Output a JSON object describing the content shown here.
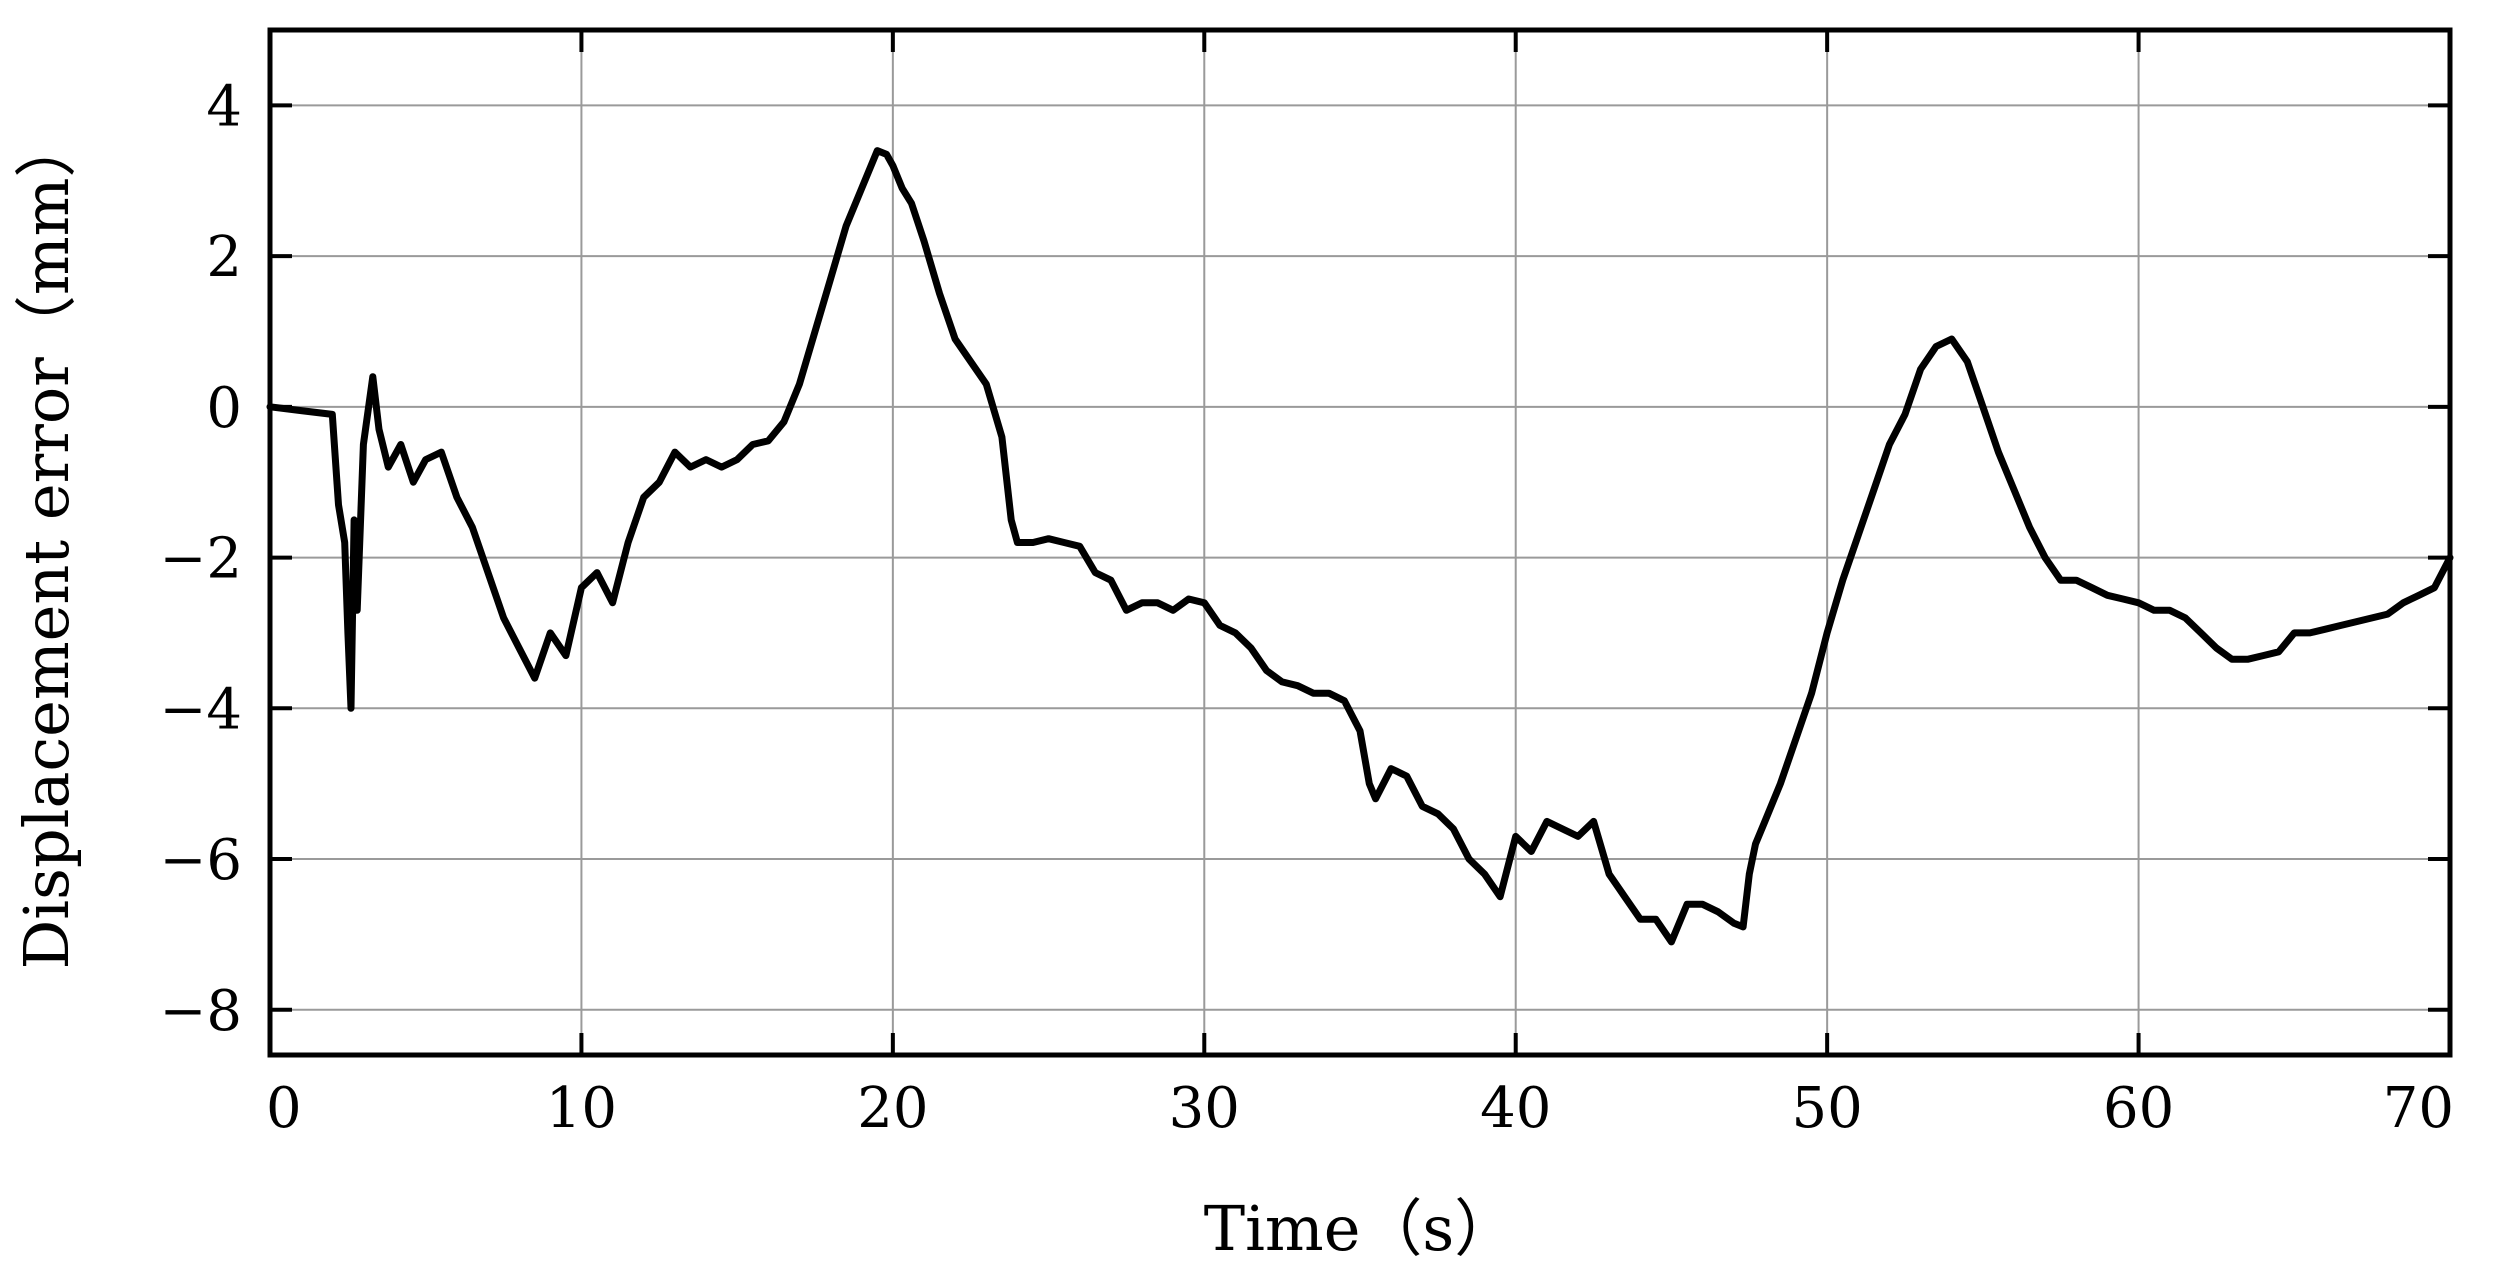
{
  "chart_data": {
    "type": "line",
    "title": "",
    "xlabel": "Time（s）",
    "ylabel": "Displacement error（mm）",
    "xlim": [
      0,
      70
    ],
    "ylim": [
      -8.6,
      5
    ],
    "xticks": [
      0,
      10,
      20,
      30,
      40,
      50,
      60,
      70
    ],
    "yticks": [
      4,
      2,
      0,
      -2,
      -4,
      -6,
      -8
    ],
    "xtick_labels": [
      "0",
      "10",
      "20",
      "30",
      "40",
      "50",
      "60",
      "70"
    ],
    "ytick_labels": [
      "4",
      "2",
      "0",
      "−2",
      "−4",
      "−6",
      "−8"
    ],
    "grid": true,
    "legend": "none",
    "series": [
      {
        "color": "#000000",
        "x": [
          0,
          1.0,
          2.0,
          2.2,
          2.4,
          2.5,
          2.6,
          2.7,
          2.8,
          3.0,
          3.3,
          3.5,
          3.8,
          4.2,
          4.6,
          5.0,
          5.5,
          6.0,
          6.5,
          7.0,
          7.5,
          8.0,
          8.5,
          9.0,
          9.5,
          10.0,
          10.5,
          11.0,
          11.5,
          12.0,
          12.5,
          13.0,
          13.5,
          14.0,
          14.5,
          15.0,
          15.5,
          16.0,
          16.5,
          17.0,
          17.5,
          18.0,
          18.5,
          19.0,
          19.5,
          19.8,
          20.0,
          20.3,
          20.6,
          21.0,
          21.5,
          22.0,
          22.5,
          23.0,
          23.5,
          23.8,
          24.0,
          24.5,
          25.0,
          25.5,
          26.0,
          26.5,
          27.0,
          27.5,
          28.0,
          28.5,
          29.0,
          29.5,
          30.0,
          30.5,
          31.0,
          31.5,
          32.0,
          32.5,
          33.0,
          33.5,
          34.0,
          34.5,
          35.0,
          35.3,
          35.5,
          36.0,
          36.5,
          37.0,
          37.5,
          38.0,
          38.5,
          39.0,
          39.5,
          40.0,
          40.5,
          41.0,
          41.5,
          42.0,
          42.5,
          43.0,
          43.5,
          44.0,
          44.5,
          45.0,
          45.5,
          46.0,
          46.5,
          47.0,
          47.3,
          47.5,
          47.7,
          48.0,
          48.5,
          49.0,
          49.5,
          50.0,
          50.5,
          51.0,
          51.5,
          52.0,
          52.5,
          53.0,
          53.5,
          54.0,
          54.5,
          55.0,
          55.5,
          56.0,
          56.5,
          57.0,
          57.5,
          58.0,
          58.5,
          59.0,
          59.5,
          60.0,
          60.5,
          61.0,
          61.5,
          62.0,
          62.5,
          63.0,
          63.5,
          64.0,
          64.5,
          65.0,
          65.5,
          66.0,
          66.5,
          67.0,
          67.5,
          68.0,
          68.5,
          69.0,
          69.5,
          70.0
        ],
        "values": [
          0.0,
          -0.05,
          -0.1,
          -1.3,
          -1.8,
          -3.0,
          -4.0,
          -1.5,
          -2.7,
          -0.5,
          0.4,
          -0.3,
          -0.8,
          -0.5,
          -1.0,
          -0.7,
          -0.6,
          -1.2,
          -1.6,
          -2.2,
          -2.8,
          -3.2,
          -3.6,
          -3.0,
          -3.3,
          -2.4,
          -2.2,
          -2.6,
          -1.8,
          -1.2,
          -1.0,
          -0.6,
          -0.8,
          -0.7,
          -0.8,
          -0.7,
          -0.5,
          -0.45,
          -0.2,
          0.3,
          1.0,
          1.7,
          2.4,
          2.9,
          3.4,
          3.35,
          3.2,
          2.9,
          2.7,
          2.2,
          1.5,
          0.9,
          0.6,
          0.3,
          -0.4,
          -1.5,
          -1.8,
          -1.8,
          -1.75,
          -1.8,
          -1.85,
          -2.2,
          -2.3,
          -2.7,
          -2.6,
          -2.6,
          -2.7,
          -2.55,
          -2.6,
          -2.9,
          -3.0,
          -3.2,
          -3.5,
          -3.65,
          -3.7,
          -3.8,
          -3.8,
          -3.9,
          -4.3,
          -5.0,
          -5.2,
          -4.8,
          -4.9,
          -5.3,
          -5.4,
          -5.6,
          -6.0,
          -6.2,
          -6.5,
          -5.7,
          -5.9,
          -5.5,
          -5.6,
          -5.7,
          -5.5,
          -6.2,
          -6.5,
          -6.8,
          -6.8,
          -7.1,
          -6.6,
          -6.6,
          -6.7,
          -6.85,
          -6.9,
          -6.2,
          -5.8,
          -5.5,
          -5.0,
          -4.4,
          -3.8,
          -3.0,
          -2.3,
          -1.7,
          -1.1,
          -0.5,
          -0.1,
          0.5,
          0.8,
          0.9,
          0.6,
          0.0,
          -0.6,
          -1.1,
          -1.6,
          -2.0,
          -2.3,
          -2.3,
          -2.4,
          -2.5,
          -2.55,
          -2.6,
          -2.7,
          -2.7,
          -2.8,
          -3.0,
          -3.2,
          -3.35,
          -3.35,
          -3.3,
          -3.25,
          -3.0,
          -3.0,
          -2.95,
          -2.9,
          -2.85,
          -2.8,
          -2.75,
          -2.6,
          -2.5,
          -2.4,
          -2.0
        ]
      }
    ]
  }
}
